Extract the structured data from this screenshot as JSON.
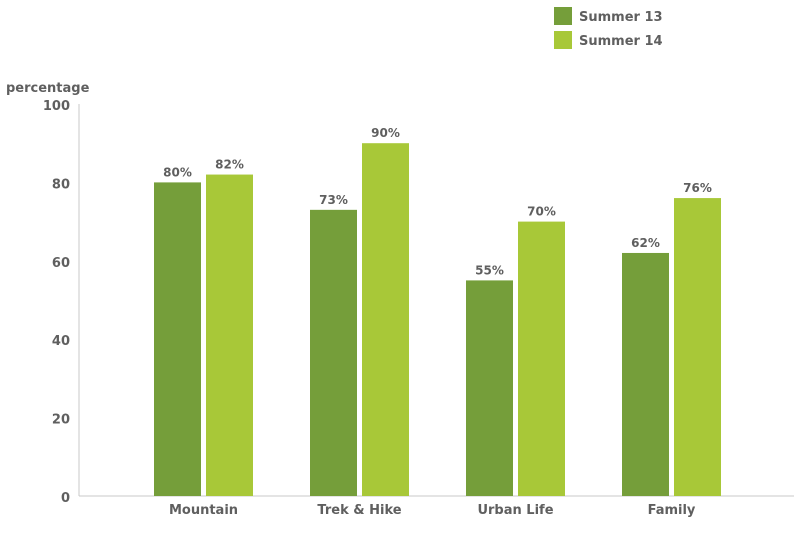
{
  "chart_data": {
    "type": "bar",
    "ylabel": "percentage",
    "ylim": [
      0,
      100
    ],
    "yticks": [
      0,
      20,
      40,
      60,
      80,
      100
    ],
    "categories": [
      "Mountain",
      "Trek & Hike",
      "Urban Life",
      "Family"
    ],
    "series": [
      {
        "name": "Summer 13",
        "color": "#759e3a",
        "values": [
          80,
          73,
          55,
          62
        ],
        "labels": [
          "80%",
          "73%",
          "55%",
          "62%"
        ]
      },
      {
        "name": "Summer 14",
        "color": "#a8c838",
        "values": [
          82,
          90,
          70,
          76
        ],
        "labels": [
          "82%",
          "90%",
          "70%",
          "76%"
        ]
      }
    ],
    "legend": "top-right",
    "grid": false
  }
}
